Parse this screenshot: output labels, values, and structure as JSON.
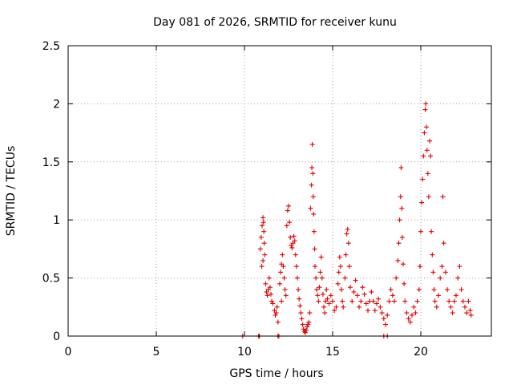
{
  "chart_data": {
    "type": "scatter",
    "title": "Day 081 of 2026, SRMTID for receiver kunu",
    "xlabel": "GPS time / hours",
    "ylabel": "SRMTID / TECUs",
    "xlim": [
      0,
      24
    ],
    "ylim": [
      0,
      2.5
    ],
    "x_ticks": [
      0,
      5,
      10,
      15,
      20
    ],
    "y_ticks": [
      0,
      0.5,
      1,
      1.5,
      2,
      2.5
    ],
    "x_tick_labels": [
      "0",
      "5",
      "10",
      "15",
      "20"
    ],
    "y_tick_labels": [
      "0",
      "0.5",
      "1",
      "1.5",
      "2",
      "2.5"
    ],
    "grid": true,
    "marker": "plus",
    "color": "#e00000",
    "series": [
      {
        "name": "kunu",
        "points": [
          [
            9.9,
            0.0
          ],
          [
            10.8,
            0.0
          ],
          [
            10.85,
            0.0
          ],
          [
            11.9,
            0.0
          ],
          [
            11.95,
            0.0
          ],
          [
            17.9,
            0.0
          ],
          [
            18.1,
            0.0
          ],
          [
            10.9,
            0.75
          ],
          [
            10.95,
            0.85
          ],
          [
            11.0,
            0.95
          ],
          [
            11.05,
            1.02
          ],
          [
            11.08,
            0.98
          ],
          [
            11.1,
            0.9
          ],
          [
            11.12,
            0.8
          ],
          [
            11.15,
            0.7
          ],
          [
            11.05,
            0.65
          ],
          [
            10.98,
            0.6
          ],
          [
            11.2,
            0.45
          ],
          [
            11.25,
            0.38
          ],
          [
            11.3,
            0.35
          ],
          [
            11.35,
            0.4
          ],
          [
            11.4,
            0.5
          ],
          [
            11.45,
            0.42
          ],
          [
            11.5,
            0.36
          ],
          [
            11.55,
            0.3
          ],
          [
            11.6,
            0.28
          ],
          [
            11.7,
            0.22
          ],
          [
            11.75,
            0.18
          ],
          [
            11.8,
            0.2
          ],
          [
            11.85,
            0.25
          ],
          [
            11.9,
            0.12
          ],
          [
            12.0,
            0.45
          ],
          [
            12.05,
            0.55
          ],
          [
            12.1,
            0.62
          ],
          [
            12.15,
            0.7
          ],
          [
            12.2,
            0.6
          ],
          [
            12.25,
            0.5
          ],
          [
            12.3,
            0.4
          ],
          [
            12.35,
            0.35
          ],
          [
            12.1,
            0.3
          ],
          [
            12.4,
            0.95
          ],
          [
            12.45,
            1.08
          ],
          [
            12.5,
            1.12
          ],
          [
            12.55,
            0.98
          ],
          [
            12.6,
            0.85
          ],
          [
            12.65,
            0.78
          ],
          [
            12.7,
            0.76
          ],
          [
            12.75,
            0.8
          ],
          [
            12.8,
            0.86
          ],
          [
            12.85,
            0.82
          ],
          [
            12.9,
            0.7
          ],
          [
            12.95,
            0.6
          ],
          [
            13.0,
            0.5
          ],
          [
            13.05,
            0.4
          ],
          [
            13.1,
            0.32
          ],
          [
            13.15,
            0.26
          ],
          [
            13.2,
            0.2
          ],
          [
            13.25,
            0.15
          ],
          [
            13.3,
            0.1
          ],
          [
            13.35,
            0.06
          ],
          [
            13.4,
            0.04
          ],
          [
            13.45,
            0.03
          ],
          [
            13.5,
            0.05
          ],
          [
            13.55,
            0.08
          ],
          [
            13.6,
            0.1
          ],
          [
            13.65,
            0.12
          ],
          [
            13.7,
            0.2
          ],
          [
            13.75,
            1.1
          ],
          [
            13.8,
            1.3
          ],
          [
            13.82,
            1.45
          ],
          [
            13.85,
            1.65
          ],
          [
            13.88,
            1.4
          ],
          [
            13.9,
            1.2
          ],
          [
            13.92,
            1.05
          ],
          [
            13.95,
            0.9
          ],
          [
            13.98,
            0.75
          ],
          [
            14.0,
            0.6
          ],
          [
            14.05,
            0.5
          ],
          [
            14.1,
            0.4
          ],
          [
            14.15,
            0.35
          ],
          [
            14.2,
            0.3
          ],
          [
            14.25,
            0.42
          ],
          [
            14.3,
            0.55
          ],
          [
            14.35,
            0.68
          ],
          [
            14.4,
            0.5
          ],
          [
            14.45,
            0.36
          ],
          [
            14.5,
            0.25
          ],
          [
            14.55,
            0.2
          ],
          [
            14.6,
            0.3
          ],
          [
            14.65,
            0.4
          ],
          [
            14.7,
            0.32
          ],
          [
            14.8,
            0.28
          ],
          [
            14.9,
            0.35
          ],
          [
            15.0,
            0.3
          ],
          [
            15.1,
            0.22
          ],
          [
            15.2,
            0.25
          ],
          [
            15.3,
            0.45
          ],
          [
            15.35,
            0.55
          ],
          [
            15.4,
            0.68
          ],
          [
            15.45,
            0.6
          ],
          [
            15.5,
            0.4
          ],
          [
            15.55,
            0.3
          ],
          [
            15.6,
            0.25
          ],
          [
            15.7,
            0.5
          ],
          [
            15.75,
            0.7
          ],
          [
            15.8,
            0.88
          ],
          [
            15.85,
            0.92
          ],
          [
            15.9,
            0.8
          ],
          [
            15.95,
            0.6
          ],
          [
            16.0,
            0.42
          ],
          [
            16.1,
            0.3
          ],
          [
            16.2,
            0.38
          ],
          [
            16.3,
            0.48
          ],
          [
            16.4,
            0.35
          ],
          [
            16.5,
            0.25
          ],
          [
            16.6,
            0.3
          ],
          [
            16.7,
            0.42
          ],
          [
            16.8,
            0.36
          ],
          [
            16.9,
            0.28
          ],
          [
            17.0,
            0.22
          ],
          [
            17.1,
            0.3
          ],
          [
            17.2,
            0.38
          ],
          [
            17.3,
            0.3
          ],
          [
            17.4,
            0.22
          ],
          [
            17.5,
            0.28
          ],
          [
            17.6,
            0.32
          ],
          [
            17.7,
            0.25
          ],
          [
            17.8,
            0.2
          ],
          [
            17.9,
            0.15
          ],
          [
            18.0,
            0.1
          ],
          [
            18.1,
            0.18
          ],
          [
            18.2,
            0.3
          ],
          [
            18.3,
            0.4
          ],
          [
            18.4,
            0.35
          ],
          [
            18.5,
            0.3
          ],
          [
            18.6,
            0.5
          ],
          [
            18.7,
            0.65
          ],
          [
            18.75,
            0.8
          ],
          [
            18.8,
            1.0
          ],
          [
            18.85,
            1.2
          ],
          [
            18.88,
            1.45
          ],
          [
            18.92,
            1.1
          ],
          [
            18.95,
            0.85
          ],
          [
            19.0,
            0.62
          ],
          [
            19.05,
            0.45
          ],
          [
            19.1,
            0.3
          ],
          [
            19.2,
            0.2
          ],
          [
            19.3,
            0.15
          ],
          [
            19.4,
            0.12
          ],
          [
            19.5,
            0.18
          ],
          [
            19.6,
            0.25
          ],
          [
            19.7,
            0.2
          ],
          [
            19.8,
            0.3
          ],
          [
            19.9,
            0.4
          ],
          [
            19.95,
            0.6
          ],
          [
            20.0,
            0.9
          ],
          [
            20.05,
            1.15
          ],
          [
            20.1,
            1.35
          ],
          [
            20.15,
            1.55
          ],
          [
            20.2,
            1.75
          ],
          [
            20.25,
            1.95
          ],
          [
            20.28,
            2.0
          ],
          [
            20.32,
            1.8
          ],
          [
            20.35,
            1.6
          ],
          [
            20.4,
            1.4
          ],
          [
            20.45,
            1.2
          ],
          [
            20.5,
            1.68
          ],
          [
            20.55,
            1.55
          ],
          [
            20.6,
            0.9
          ],
          [
            20.65,
            0.7
          ],
          [
            20.7,
            0.55
          ],
          [
            20.75,
            0.4
          ],
          [
            20.8,
            0.3
          ],
          [
            20.9,
            0.25
          ],
          [
            21.0,
            0.35
          ],
          [
            21.1,
            0.5
          ],
          [
            21.2,
            0.6
          ],
          [
            21.25,
            1.2
          ],
          [
            21.3,
            0.8
          ],
          [
            21.4,
            0.55
          ],
          [
            21.5,
            0.4
          ],
          [
            21.6,
            0.3
          ],
          [
            21.7,
            0.25
          ],
          [
            21.8,
            0.2
          ],
          [
            21.9,
            0.3
          ],
          [
            22.0,
            0.35
          ],
          [
            22.1,
            0.5
          ],
          [
            22.2,
            0.6
          ],
          [
            22.3,
            0.4
          ],
          [
            22.4,
            0.3
          ],
          [
            22.5,
            0.25
          ],
          [
            22.6,
            0.2
          ],
          [
            22.7,
            0.3
          ],
          [
            22.8,
            0.22
          ],
          [
            22.85,
            0.18
          ]
        ]
      }
    ]
  }
}
